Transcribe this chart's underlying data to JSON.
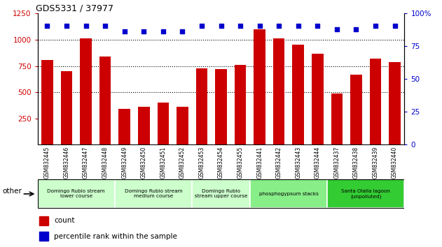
{
  "title": "GDS5331 / 37977",
  "samples": [
    "GSM832445",
    "GSM832446",
    "GSM832447",
    "GSM832448",
    "GSM832449",
    "GSM832450",
    "GSM832451",
    "GSM832452",
    "GSM832453",
    "GSM832454",
    "GSM832455",
    "GSM832441",
    "GSM832442",
    "GSM832443",
    "GSM832444",
    "GSM832437",
    "GSM832438",
    "GSM832439",
    "GSM832440"
  ],
  "counts": [
    810,
    700,
    1010,
    840,
    340,
    360,
    400,
    360,
    730,
    720,
    760,
    1100,
    1010,
    950,
    870,
    490,
    670,
    820,
    790
  ],
  "percentiles": [
    97,
    97,
    97,
    97,
    82,
    82,
    82,
    82,
    97,
    97,
    97,
    97,
    97,
    97,
    97,
    90,
    90,
    97,
    97
  ],
  "pct_to_left": {
    "97": 1130,
    "82": 1080,
    "90": 1100
  },
  "bar_color": "#cc0000",
  "dot_color": "#0000cc",
  "ylim_left": [
    0,
    1250
  ],
  "ylim_right": [
    0,
    100
  ],
  "yticks_left": [
    250,
    500,
    750,
    1000,
    1250
  ],
  "yticks_right": [
    0,
    25,
    50,
    75,
    100
  ],
  "groups": [
    {
      "label": "Domingo Rubio stream\nlower course",
      "start": 0,
      "end": 3
    },
    {
      "label": "Domingo Rubio stream\nmedium course",
      "start": 4,
      "end": 7
    },
    {
      "label": "Domingo Rubio\nstream upper course",
      "start": 8,
      "end": 10
    },
    {
      "label": "phosphogypsum stacks",
      "start": 11,
      "end": 14
    },
    {
      "label": "Santa Olalla lagoon\n(unpolluted)",
      "start": 15,
      "end": 18
    }
  ],
  "group_colors": [
    "#ccffcc",
    "#ccffcc",
    "#ccffcc",
    "#88ee88",
    "#33cc33"
  ],
  "bar_color_legend": "#cc0000",
  "dot_color_legend": "#0000cc",
  "tick_label_color": "#cc0000",
  "right_tick_color": "#0000cc",
  "dotted_vals": [
    500,
    750,
    1000
  ],
  "bar_width": 0.6,
  "xtick_bg_color": "#c8c8c8",
  "other_label": "other"
}
